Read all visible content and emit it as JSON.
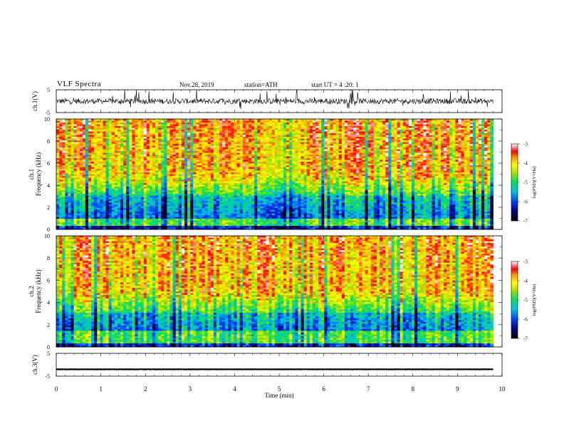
{
  "header": {
    "title": "VLF Spectra",
    "date": "Nov.28, 2019",
    "station": "station=ATH",
    "start": "start UT = 4 :20: 1"
  },
  "colors": {
    "spectrum_low": "#000080",
    "spectrum_mid": "#00e080",
    "spectrum_high": "#ff0000",
    "trace": "#000000"
  },
  "chart_data": [
    {
      "type": "line",
      "name": "ch1-waveform",
      "ylabel": "ch.1(V)",
      "ylim": [
        -5,
        5
      ],
      "yticks": [
        "5",
        "-5"
      ],
      "x_range_min": [
        0,
        9.8
      ],
      "baseline_v": 0.0,
      "amplitude_v": 1.5
    },
    {
      "type": "heatmap",
      "name": "ch1-spectrogram",
      "ylabel_1": "ch.1",
      "ylabel_2": "Frequency (kHz)",
      "ylim": [
        0,
        10
      ],
      "yticks": [
        "0",
        "2",
        "4",
        "6",
        "8",
        "10"
      ],
      "x_range_min": [
        0,
        9.8
      ],
      "colorbar": {
        "label": "log(PSD)(V²/Hz)",
        "range": [
          -7,
          -3
        ],
        "ticks": [
          "-3",
          "-4",
          "-5",
          "-6",
          "-7"
        ]
      }
    },
    {
      "type": "heatmap",
      "name": "ch2-spectrogram",
      "ylabel_1": "ch.2",
      "ylabel_2": "Frequency (kHz)",
      "ylim": [
        0,
        10
      ],
      "yticks": [
        "0",
        "2",
        "4",
        "6",
        "8",
        "10"
      ],
      "x_range_min": [
        0,
        9.8
      ],
      "colorbar": {
        "label": "log(PSD)(V²/Hz)",
        "range": [
          -7,
          -3
        ],
        "ticks": [
          "-3",
          "-4",
          "-5",
          "-6",
          "-7"
        ]
      }
    },
    {
      "type": "line",
      "name": "ch3-waveform",
      "ylabel": "ch.3(V)",
      "ylim": [
        -5,
        5
      ],
      "yticks": [
        "5",
        "-5"
      ],
      "x_range_min": [
        0,
        9.8
      ],
      "baseline_v": -2.0,
      "amplitude_v": 0.1
    }
  ],
  "xaxis": {
    "label": "Time (min)",
    "xlim": [
      0,
      10
    ],
    "ticks": [
      "0",
      "1",
      "2",
      "3",
      "4",
      "5",
      "6",
      "7",
      "8",
      "9",
      "10"
    ]
  }
}
